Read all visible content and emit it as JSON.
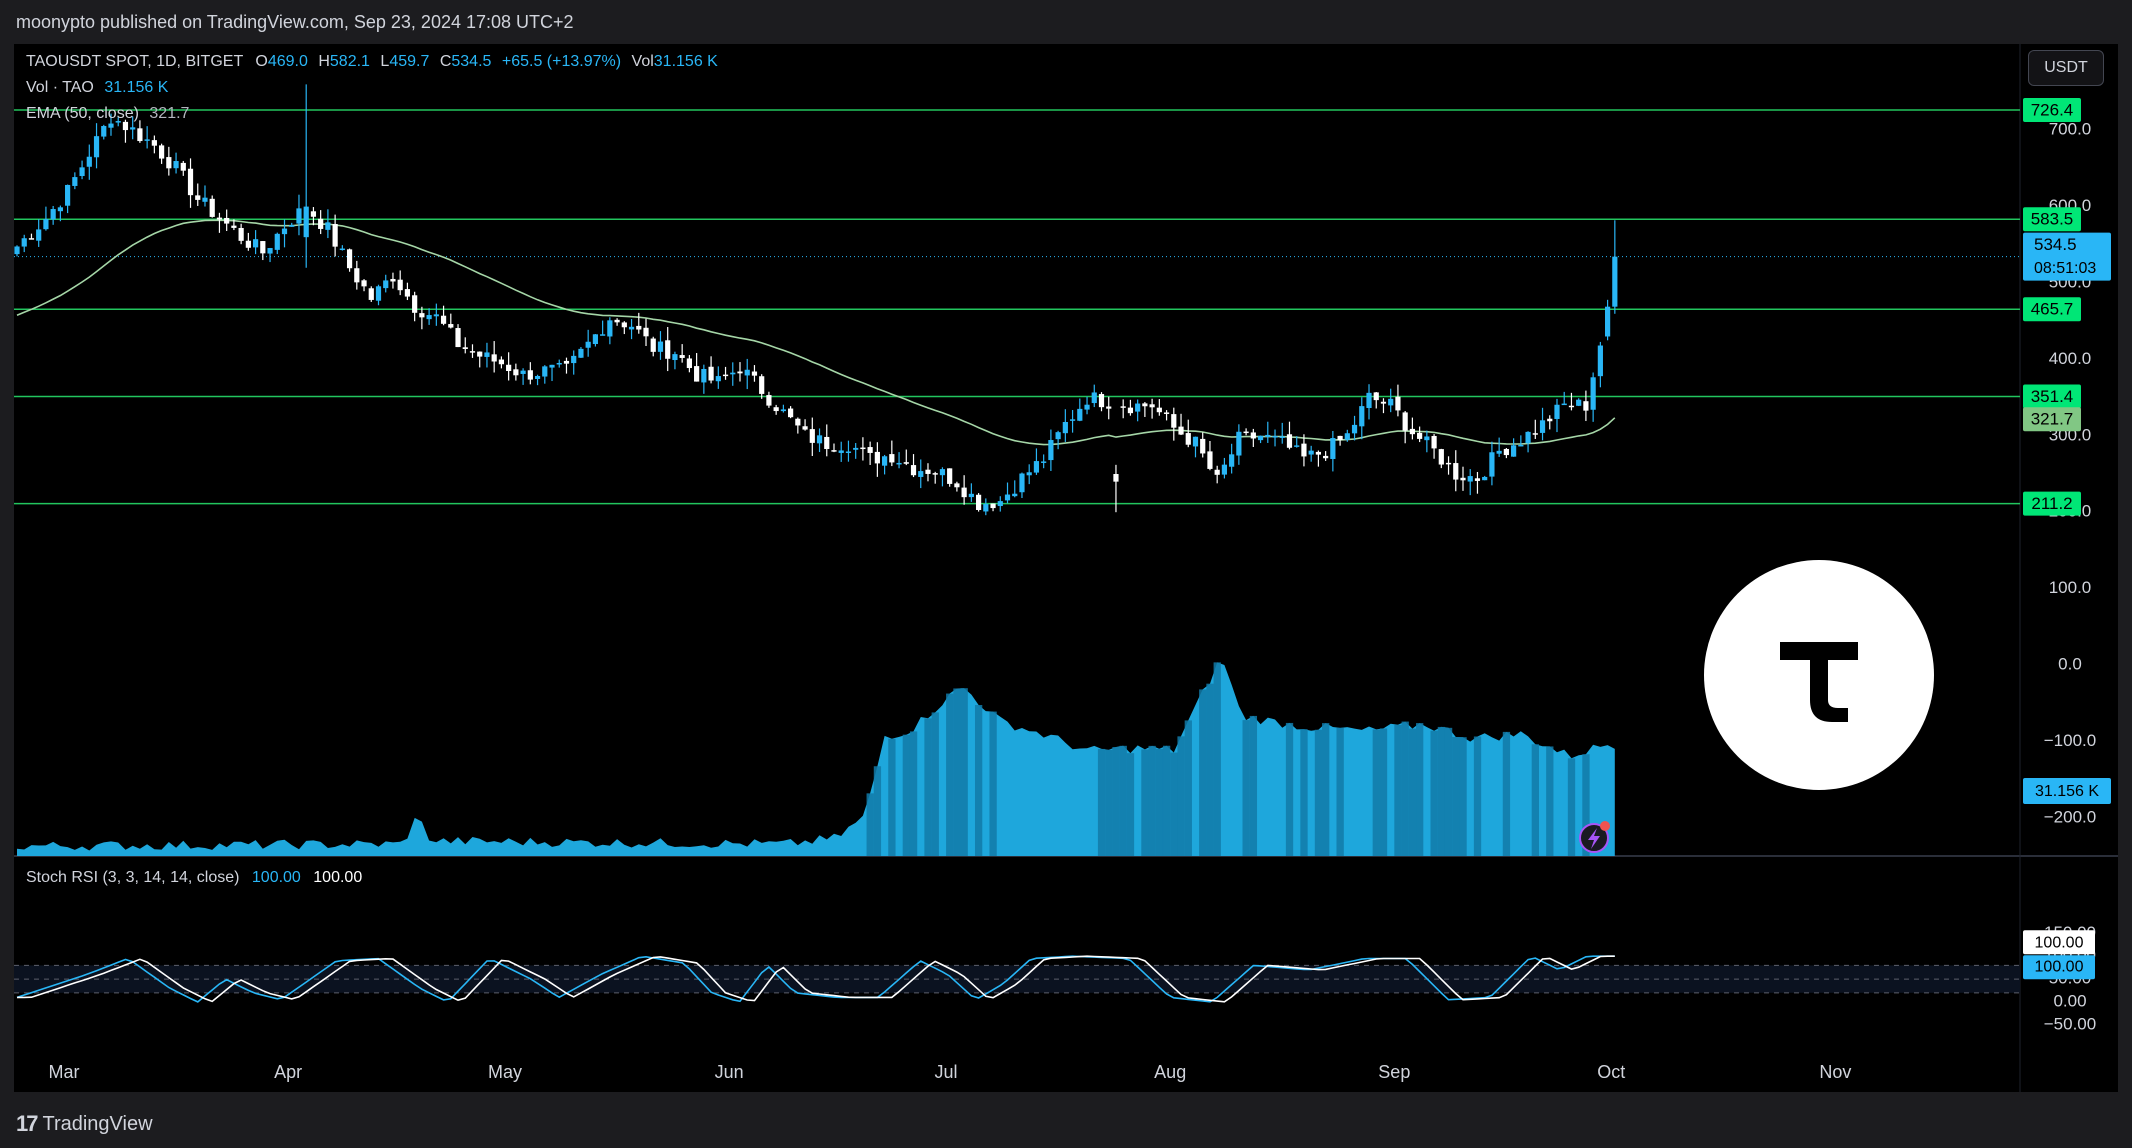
{
  "header": {
    "text": "moonypto published on TradingView.com, Sep 23, 2024 17:08 UTC+2"
  },
  "footer": {
    "brand": "TradingView",
    "mark": "17"
  },
  "legend": {
    "symbol": "TAOUSDT SPOT, 1D, BITGET",
    "o_label": "O",
    "o": "469.0",
    "h_label": "H",
    "h": "582.1",
    "l_label": "L",
    "l": "459.7",
    "c_label": "C",
    "c": "534.5",
    "change": "+65.5 (+13.97%)",
    "vol_label": "Vol",
    "vol": "31.156 K",
    "vol_line_label": "Vol · TAO",
    "vol_line_value": "31.156 K",
    "ema_label": "EMA (50, close)",
    "ema_value": "321.7",
    "stoch_label": "Stoch RSI (3, 3, 14, 14, close)",
    "stoch_k": "100.00",
    "stoch_d": "100.00"
  },
  "currency_button": "USDT",
  "chart_data": {
    "type": "candlestick",
    "symbol": "TAOUSDT",
    "interval": "1D",
    "x_axis_labels": [
      "Mar",
      "Apr",
      "May",
      "Jun",
      "Jul",
      "Aug",
      "Sep",
      "Oct",
      "Nov"
    ],
    "price_axis_ticks": [
      -200.0,
      -100.0,
      0.0,
      100.0,
      200.0,
      300.0,
      400.0,
      500.0,
      600.0,
      700.0
    ],
    "price_axis_tick_labels": [
      "−200.0",
      "−100.0",
      "0.0",
      "100.0",
      "200.0",
      "300.0",
      "400.0",
      "500.0",
      "600.0",
      "700.0"
    ],
    "horizontal_levels": [
      726.4,
      583.5,
      465.7,
      351.4,
      211.2
    ],
    "horizontal_level_labels": [
      "726.4",
      "583.5",
      "465.7",
      "351.4",
      "211.2"
    ],
    "last_price": {
      "value": 534.5,
      "label": "534.5",
      "countdown": "08:51:03"
    },
    "ema_label_value": 321.7,
    "ema_label_text": "321.7",
    "volume_label": "31.156 K",
    "candle_anchors": [
      [
        0,
        548
      ],
      [
        4,
        585
      ],
      [
        7,
        620
      ],
      [
        10,
        670
      ],
      [
        13,
        718
      ],
      [
        16,
        700
      ],
      [
        19,
        680
      ],
      [
        22,
        650
      ],
      [
        25,
        610
      ],
      [
        28,
        585
      ],
      [
        31,
        560
      ],
      [
        34,
        540
      ],
      [
        37,
        575
      ],
      [
        40,
        600
      ],
      [
        43,
        570
      ],
      [
        46,
        520
      ],
      [
        49,
        480
      ],
      [
        52,
        510
      ],
      [
        55,
        470
      ],
      [
        58,
        455
      ],
      [
        61,
        420
      ],
      [
        64,
        405
      ],
      [
        67,
        395
      ],
      [
        70,
        380
      ],
      [
        73,
        385
      ],
      [
        76,
        385
      ],
      [
        79,
        420
      ],
      [
        82,
        455
      ],
      [
        85,
        445
      ],
      [
        88,
        415
      ],
      [
        91,
        410
      ],
      [
        94,
        380
      ],
      [
        97,
        370
      ],
      [
        100,
        390
      ],
      [
        103,
        360
      ],
      [
        106,
        330
      ],
      [
        109,
        300
      ],
      [
        112,
        290
      ],
      [
        115,
        290
      ],
      [
        118,
        270
      ],
      [
        121,
        275
      ],
      [
        124,
        258
      ],
      [
        127,
        255
      ],
      [
        130,
        240
      ],
      [
        133,
        212
      ],
      [
        136,
        215
      ],
      [
        139,
        245
      ],
      [
        142,
        270
      ],
      [
        145,
        315
      ],
      [
        148,
        350
      ],
      [
        151,
        345
      ],
      [
        154,
        340
      ],
      [
        157,
        340
      ],
      [
        160,
        310
      ],
      [
        163,
        290
      ],
      [
        166,
        240
      ],
      [
        169,
        295
      ],
      [
        172,
        300
      ],
      [
        175,
        290
      ],
      [
        178,
        270
      ],
      [
        181,
        280
      ],
      [
        184,
        300
      ],
      [
        187,
        350
      ],
      [
        190,
        340
      ],
      [
        193,
        305
      ],
      [
        196,
        280
      ],
      [
        199,
        250
      ],
      [
        202,
        245
      ],
      [
        205,
        280
      ],
      [
        208,
        295
      ],
      [
        211,
        315
      ],
      [
        214,
        340
      ],
      [
        217,
        340
      ],
      [
        219,
        420
      ],
      [
        220,
        469
      ],
      [
        221,
        534.5
      ]
    ],
    "candle_count": 222,
    "volume_shape": "very low Mar–mid Jun, surge from mid Jun, peak early Aug, elevated through Sep",
    "stoch_rsi": {
      "k_label": "100.00",
      "d_label": "100.00",
      "levels": [
        80,
        50,
        20
      ],
      "axis_ticks": [
        -50.0,
        0.0,
        50.0,
        100.0,
        150.0
      ],
      "axis_tick_labels": [
        "−50.00",
        "0.00",
        "50.00",
        "100.00",
        "150.00"
      ],
      "anchors": [
        [
          0,
          10
        ],
        [
          10,
          60
        ],
        [
          16,
          95
        ],
        [
          22,
          30
        ],
        [
          26,
          0
        ],
        [
          30,
          50
        ],
        [
          34,
          20
        ],
        [
          38,
          5
        ],
        [
          46,
          90
        ],
        [
          52,
          95
        ],
        [
          58,
          30
        ],
        [
          62,
          0
        ],
        [
          68,
          95
        ],
        [
          74,
          50
        ],
        [
          78,
          10
        ],
        [
          84,
          60
        ],
        [
          90,
          100
        ],
        [
          96,
          85
        ],
        [
          100,
          20
        ],
        [
          104,
          0
        ],
        [
          108,
          80
        ],
        [
          112,
          20
        ],
        [
          118,
          10
        ],
        [
          124,
          10
        ],
        [
          130,
          90
        ],
        [
          134,
          60
        ],
        [
          138,
          5
        ],
        [
          142,
          40
        ],
        [
          146,
          95
        ],
        [
          152,
          100
        ],
        [
          160,
          95
        ],
        [
          166,
          10
        ],
        [
          172,
          0
        ],
        [
          178,
          80
        ],
        [
          186,
          70
        ],
        [
          194,
          95
        ],
        [
          200,
          95
        ],
        [
          206,
          5
        ],
        [
          212,
          10
        ],
        [
          218,
          100
        ],
        [
          222,
          70
        ],
        [
          226,
          100
        ],
        [
          230,
          100
        ]
      ]
    },
    "colors": {
      "background": "#000000",
      "up": "#29b6f6",
      "down": "#ffffff",
      "level_line": "#22c55e",
      "level_tag": "#00e676",
      "ema": "#a5d6a7",
      "ema_tag": "#81c784",
      "volume_light": "#1ea7dc",
      "volume_dark": "#127aa8",
      "last_price_tag": "#29b6f6",
      "stoch_k": "#29b6f6",
      "stoch_d": "#ffffff"
    },
    "overlay_logo": "bittensor-tau-logo"
  }
}
